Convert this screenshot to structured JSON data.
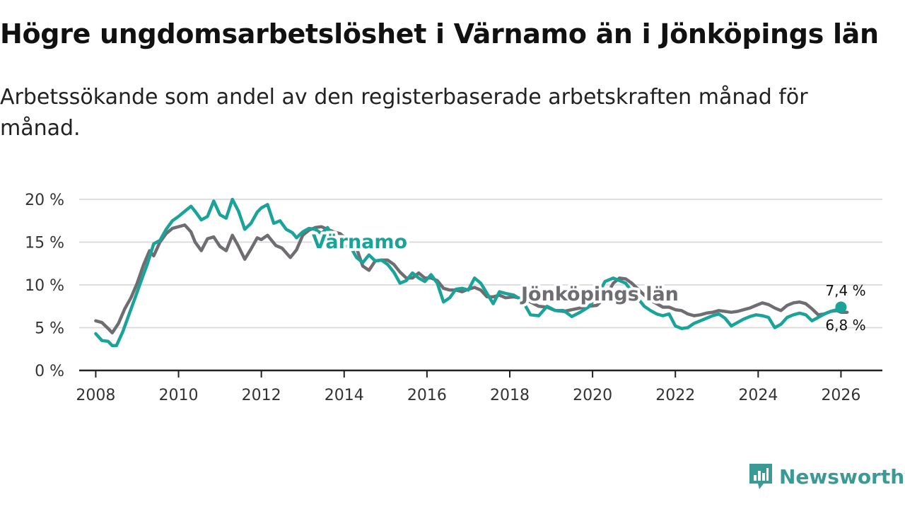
{
  "title": "Högre ungdomsarbetslöshet i Värnamo än i Jönköpings län",
  "subtitle": "Arbetssökande som andel av den registerbaserade arbetskraften månad för månad.",
  "brand": "Newsworthy",
  "colors": {
    "varnamo": "#1aa398",
    "jonkoping": "#6f6c72",
    "brand": "#3a9a96"
  },
  "chart_data": {
    "type": "line",
    "title": "Högre ungdomsarbetslöshet i Värnamo än i Jönköpings län",
    "xlabel": "",
    "ylabel": "",
    "xlim": [
      2007.6,
      2027.0
    ],
    "ylim": [
      0,
      20
    ],
    "grid": true,
    "y_ticks": [
      0,
      5,
      10,
      15,
      20
    ],
    "y_tick_labels": [
      "0 %",
      "5 %",
      "10 %",
      "15 %",
      "20 %"
    ],
    "x_ticks": [
      2008,
      2010,
      2012,
      2014,
      2016,
      2018,
      2020,
      2022,
      2024,
      2026
    ],
    "x_tick_labels": [
      "2008",
      "2010",
      "2012",
      "2014",
      "2016",
      "2018",
      "2020",
      "2022",
      "2024",
      "2026"
    ],
    "series": [
      {
        "name": "Jönköpings län",
        "label": "Jönköpings län",
        "end_label": "6,8 %",
        "x": [
          2008.0,
          2008.15,
          2008.3,
          2008.4,
          2008.55,
          2008.7,
          2008.85,
          2009.0,
          2009.15,
          2009.3,
          2009.4,
          2009.55,
          2009.7,
          2009.85,
          2010.0,
          2010.15,
          2010.3,
          2010.4,
          2010.55,
          2010.7,
          2010.85,
          2011.0,
          2011.15,
          2011.3,
          2011.45,
          2011.6,
          2011.75,
          2011.9,
          2012.0,
          2012.15,
          2012.35,
          2012.5,
          2012.7,
          2012.85,
          2013.0,
          2013.15,
          2013.3,
          2013.45,
          2013.6,
          2013.75,
          2013.9,
          2014.15,
          2014.3,
          2014.45,
          2014.6,
          2014.75,
          2014.9,
          2015.05,
          2015.2,
          2015.35,
          2015.5,
          2015.65,
          2015.8,
          2015.95,
          2016.1,
          2016.25,
          2016.4,
          2016.55,
          2016.7,
          2016.85,
          2017.0,
          2017.15,
          2017.3,
          2017.45,
          2017.6,
          2017.75,
          2017.9,
          2018.1,
          2018.3,
          2018.5,
          2018.7,
          2018.9,
          2019.1,
          2019.3,
          2019.5,
          2019.7,
          2019.9,
          2020.1,
          2020.3,
          2020.5,
          2020.65,
          2020.8,
          2020.95,
          2021.1,
          2021.25,
          2021.4,
          2021.55,
          2021.7,
          2021.85,
          2022.0,
          2022.15,
          2022.3,
          2022.45,
          2022.6,
          2022.75,
          2022.9,
          2023.05,
          2023.2,
          2023.35,
          2023.5,
          2023.65,
          2023.8,
          2023.95,
          2024.1,
          2024.25,
          2024.4,
          2024.55,
          2024.7,
          2024.85,
          2025.0,
          2025.15,
          2025.3,
          2025.45,
          2025.6,
          2025.75,
          2025.9,
          2026.0,
          2026.15
        ],
        "values": [
          5.8,
          5.6,
          4.9,
          4.4,
          5.5,
          7.2,
          8.5,
          10.2,
          12.3,
          14.0,
          13.4,
          15.0,
          16.0,
          16.6,
          16.8,
          17.0,
          16.2,
          15.0,
          14.0,
          15.4,
          15.6,
          14.5,
          14.0,
          15.8,
          14.5,
          13.0,
          14.2,
          15.5,
          15.3,
          15.8,
          14.6,
          14.3,
          13.2,
          14.1,
          15.8,
          16.4,
          16.7,
          16.8,
          16.5,
          16.2,
          16.0,
          15.0,
          14.3,
          12.2,
          11.7,
          12.8,
          12.9,
          12.9,
          12.4,
          11.5,
          10.8,
          10.8,
          11.4,
          10.8,
          10.8,
          10.5,
          9.6,
          9.4,
          9.4,
          9.2,
          9.5,
          9.7,
          9.4,
          8.6,
          8.6,
          8.8,
          8.5,
          8.6,
          8.4,
          8.0,
          7.5,
          7.4,
          7.0,
          6.9,
          7.1,
          7.3,
          7.5,
          7.6,
          8.5,
          10.2,
          10.8,
          10.7,
          10.2,
          9.5,
          8.8,
          8.2,
          7.8,
          7.4,
          7.4,
          7.1,
          7.0,
          6.6,
          6.4,
          6.5,
          6.7,
          6.8,
          7.0,
          6.9,
          6.8,
          6.9,
          7.1,
          7.3,
          7.6,
          7.9,
          7.7,
          7.3,
          7.0,
          7.6,
          7.9,
          8.0,
          7.8,
          7.2,
          6.5,
          6.6,
          6.9,
          7.0,
          6.8,
          6.8
        ]
      },
      {
        "name": "Värnamo",
        "label": "Värnamo",
        "end_label": "7,4 %",
        "x": [
          2008.0,
          2008.15,
          2008.3,
          2008.4,
          2008.5,
          2008.65,
          2008.8,
          2008.95,
          2009.1,
          2009.25,
          2009.4,
          2009.55,
          2009.7,
          2009.85,
          2010.0,
          2010.15,
          2010.3,
          2010.4,
          2010.55,
          2010.7,
          2010.85,
          2011.0,
          2011.15,
          2011.3,
          2011.45,
          2011.6,
          2011.75,
          2011.9,
          2012.0,
          2012.15,
          2012.3,
          2012.45,
          2012.6,
          2012.75,
          2012.85,
          2013.0,
          2013.15,
          2013.3,
          2013.45,
          2013.6,
          2013.75,
          2013.9,
          2014.15,
          2014.3,
          2014.45,
          2014.6,
          2014.75,
          2014.9,
          2015.05,
          2015.2,
          2015.35,
          2015.5,
          2015.65,
          2015.8,
          2015.95,
          2016.1,
          2016.25,
          2016.4,
          2016.55,
          2016.7,
          2016.85,
          2017.0,
          2017.15,
          2017.3,
          2017.45,
          2017.6,
          2017.75,
          2017.9,
          2018.1,
          2018.3,
          2018.5,
          2018.7,
          2018.9,
          2019.1,
          2019.3,
          2019.5,
          2019.7,
          2019.9,
          2020.1,
          2020.3,
          2020.5,
          2020.65,
          2020.8,
          2020.95,
          2021.1,
          2021.25,
          2021.4,
          2021.55,
          2021.7,
          2021.85,
          2022.0,
          2022.15,
          2022.3,
          2022.45,
          2022.6,
          2022.75,
          2022.9,
          2023.05,
          2023.2,
          2023.35,
          2023.5,
          2023.65,
          2023.8,
          2023.95,
          2024.1,
          2024.25,
          2024.4,
          2024.55,
          2024.7,
          2024.85,
          2025.0,
          2025.15,
          2025.3,
          2025.45,
          2025.6,
          2025.75,
          2025.9,
          2026.0
        ],
        "values": [
          4.3,
          3.5,
          3.4,
          2.9,
          2.9,
          4.5,
          6.5,
          8.5,
          10.5,
          12.5,
          14.8,
          15.2,
          16.5,
          17.5,
          18.0,
          18.6,
          19.2,
          18.6,
          17.6,
          18.0,
          19.8,
          18.2,
          17.8,
          20.0,
          18.6,
          16.5,
          17.2,
          18.5,
          19.0,
          19.4,
          17.2,
          17.5,
          16.5,
          16.1,
          15.5,
          16.2,
          16.6,
          16.5,
          16.0,
          16.7,
          15.5,
          14.6,
          14.5,
          13.2,
          12.6,
          13.5,
          12.8,
          12.9,
          12.4,
          11.5,
          10.2,
          10.5,
          11.4,
          10.8,
          10.4,
          11.2,
          10.2,
          8.0,
          8.5,
          9.5,
          9.6,
          9.4,
          10.8,
          10.2,
          9.0,
          7.8,
          9.2,
          9.0,
          8.8,
          8.2,
          6.5,
          6.4,
          7.5,
          7.0,
          7.0,
          6.3,
          6.8,
          7.4,
          8.6,
          10.4,
          10.8,
          10.5,
          10.2,
          9.2,
          8.4,
          7.5,
          7.0,
          6.6,
          6.4,
          6.6,
          5.2,
          4.9,
          5.0,
          5.5,
          5.8,
          6.1,
          6.4,
          6.6,
          6.1,
          5.2,
          5.6,
          6.0,
          6.3,
          6.5,
          6.4,
          6.2,
          5.0,
          5.4,
          6.2,
          6.5,
          6.7,
          6.5,
          5.8,
          6.2,
          6.6,
          6.9,
          7.1,
          7.4
        ]
      }
    ]
  }
}
